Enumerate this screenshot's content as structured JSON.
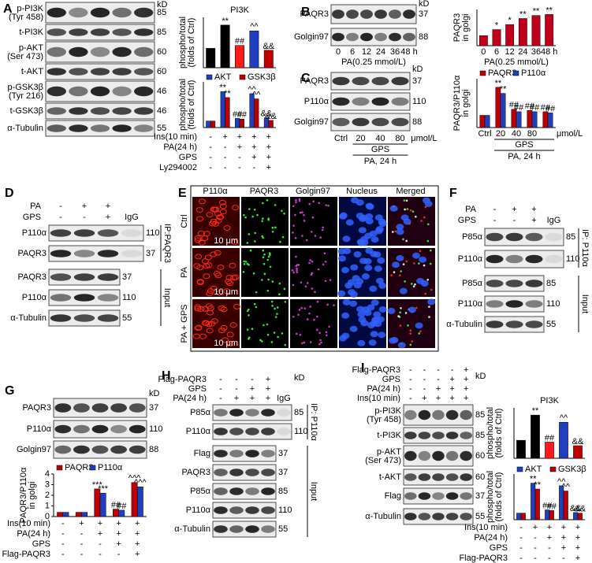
{
  "A": {
    "letter": "A",
    "blot": {
      "unit": "kD",
      "groups": [
        {
          "rows": [
            {
              "label": "p-PI3K",
              "sub": "(Tyr 458)",
              "kd": 85
            },
            {
              "label": "t-PI3K",
              "kd": 85
            },
            {
              "label": "p-AKT",
              "sub": "(Ser 473)",
              "kd": 60
            },
            {
              "label": "t-AKT",
              "kd": 60
            },
            {
              "label": "p-GSK3β",
              "sub": "(Tyr 216)",
              "kd": 46
            },
            {
              "label": "t-GSK3β",
              "kd": 46
            },
            {
              "label": "α-Tubulin",
              "kd": 55
            }
          ]
        }
      ]
    },
    "charts": [
      {
        "title": "PI3K",
        "ylabel": [
          "phospho/total",
          "(folds of Ctrl)"
        ],
        "ylim": [
          0,
          2.6
        ],
        "series": [
          {
            "colors": [
              "#000000",
              "#000000",
              "#ff1a1a",
              "#1f3fbf",
              "#c00000"
            ],
            "values": [
              1.0,
              2.2,
              1.15,
              1.9,
              0.9
            ],
            "annot": [
              null,
              "**",
              "##",
              "^^",
              "&&"
            ]
          }
        ]
      },
      {
        "ylabel": [
          "phospho/total",
          "(folds of Ctrl)"
        ],
        "ylim": [
          0,
          7
        ],
        "legend": true,
        "series": [
          {
            "name": "AKT",
            "color": "#1f3fbf",
            "values": [
              1.0,
              5.5,
              1.4,
              5.2,
              1.5
            ],
            "annot": [
              null,
              "**",
              "##",
              "^^",
              "&&"
            ]
          },
          {
            "name": "GSK3β",
            "color": "#c00000",
            "values": [
              1.0,
              4.6,
              1.3,
              4.4,
              1.1
            ],
            "annot": [
              null,
              "**",
              "##",
              "^^",
              "&&"
            ]
          }
        ]
      }
    ],
    "treatment": {
      "rows": [
        {
          "label": "Ins(10 min)",
          "signs": [
            "-",
            "+",
            "+",
            "+",
            "+"
          ]
        },
        {
          "label": "PA(24 h)",
          "signs": [
            "-",
            "-",
            "+",
            "+",
            "+"
          ]
        },
        {
          "label": "GPS",
          "signs": [
            "-",
            "-",
            "-",
            "+",
            "+"
          ]
        },
        {
          "label": "Ly294002",
          "signs": [
            "-",
            "-",
            "-",
            "-",
            "+"
          ]
        }
      ]
    }
  },
  "B": {
    "letter": "B",
    "blot": {
      "unit": "kD",
      "groups": [
        {
          "rows": [
            {
              "label": "PAQR3",
              "kd": 37
            },
            {
              "label": "Golgin97",
              "kd": 88
            }
          ]
        }
      ]
    },
    "blot_axis": {
      "lanes": [
        "0",
        "6",
        "12",
        "24",
        "36",
        "48 h"
      ],
      "xlabel": "PA(0.25 mmol/L)"
    },
    "chart": {
      "ylabel": [
        "PAQR3",
        "in golgi"
      ],
      "ylim": [
        0,
        3.6
      ],
      "series": [
        {
          "color": "#c0001a",
          "values": [
            1.0,
            1.6,
            2.1,
            2.7,
            3.0,
            3.1
          ],
          "annot": [
            null,
            "*",
            "*",
            "**",
            "**",
            "**"
          ]
        }
      ]
    },
    "chart_axis": {
      "lanes": [
        "0",
        "6",
        "12",
        "24",
        "36",
        "48 h"
      ],
      "xlabel": "PA(0.25 mmol/L)"
    }
  },
  "C": {
    "letter": "C",
    "blot": {
      "unit": "kD",
      "groups": [
        {
          "rows": [
            {
              "label": "PAQR3",
              "kd": 37
            },
            {
              "label": "P110α",
              "kd": 110
            },
            {
              "label": "Golgin97",
              "kd": 88
            }
          ]
        }
      ]
    },
    "blot_axis": {
      "lanes": [
        "Ctrl",
        "20",
        "40",
        "80"
      ],
      "unit": "μmol/L",
      "gps": "GPS",
      "pa": "PA, 24 h"
    },
    "chart": {
      "ylabel": [
        "PAQR3/P110α",
        "in golgi"
      ],
      "ylim": [
        0,
        4
      ],
      "legend": true,
      "series": [
        {
          "name": "PAQR3",
          "color": "#c00000",
          "values": [
            1.0,
            3.3,
            1.5,
            1.4,
            1.3
          ],
          "annot": [
            null,
            "**",
            "##",
            "##",
            "##"
          ]
        },
        {
          "name": "P110α",
          "color": "#1f3fbf",
          "values": [
            1.0,
            2.8,
            1.3,
            1.3,
            1.2
          ],
          "annot": [
            null,
            "**",
            "##",
            "##",
            "##"
          ]
        }
      ]
    },
    "chart_axis": {
      "lanes": [
        "Ctrl",
        "20",
        "40",
        "80"
      ],
      "unit": "μmol/L",
      "gps": "GPS",
      "pa": "PA, 24 h"
    }
  },
  "D": {
    "letter": "D",
    "treatment": {
      "rows": [
        {
          "label": "PA",
          "signs": [
            "-",
            "+",
            "+"
          ]
        },
        {
          "label": "GPS",
          "signs": [
            "-",
            "-",
            "+"
          ]
        }
      ]
    },
    "igg": "IgG",
    "blot": {
      "groups": [
        {
          "side": "IP:PAQR3",
          "rows": [
            {
              "label": "P110α",
              "kd": 110
            },
            {
              "label": "PAQR3",
              "kd": 37
            }
          ]
        },
        {
          "side": "Input",
          "rows": [
            {
              "label": "PAQR3",
              "kd": 37
            },
            {
              "label": "P110α",
              "kd": 110
            },
            {
              "label": "α-Tubulin",
              "kd": 55
            }
          ]
        }
      ]
    }
  },
  "E": {
    "letter": "E",
    "columns": [
      "P110α",
      "PAQR3",
      "Golgin97",
      "Nucleus",
      "Merged"
    ],
    "rows": [
      "Ctrl",
      "PA",
      "PA + GPS"
    ],
    "scale": "10 μm"
  },
  "F": {
    "letter": "F",
    "treatment": {
      "rows": [
        {
          "label": "PA",
          "signs": [
            "-",
            "+",
            "+"
          ]
        },
        {
          "label": "GPS",
          "signs": [
            "-",
            "-",
            "+"
          ]
        }
      ]
    },
    "igg": "IgG",
    "blot": {
      "groups": [
        {
          "side": "IP: P110α",
          "rows": [
            {
              "label": "P85α",
              "kd": 85
            },
            {
              "label": "P110α",
              "kd": 110
            }
          ]
        },
        {
          "side": "Input",
          "rows": [
            {
              "label": "P85α",
              "kd": 85
            },
            {
              "label": "P110α",
              "kd": 110
            },
            {
              "label": "α-Tubulin",
              "kd": 55
            }
          ]
        }
      ]
    }
  },
  "G": {
    "letter": "G",
    "blot": {
      "unit": "kD",
      "groups": [
        {
          "rows": [
            {
              "label": "PAQR3",
              "kd": 37
            },
            {
              "label": "P110α",
              "kd": 110
            },
            {
              "label": "Golgin97",
              "kd": 88
            }
          ]
        }
      ]
    },
    "chart": {
      "ylabel": [
        "PAQR3/P110α",
        "in golgi"
      ],
      "ylim": [
        0,
        4
      ],
      "yticks": [
        0,
        1,
        2,
        3,
        4
      ],
      "legend": true,
      "series": [
        {
          "name": "PAQR3",
          "color": "#c00000",
          "values": [
            0.4,
            0.4,
            2.6,
            0.7,
            3.2
          ],
          "annot": [
            null,
            null,
            "***",
            "##",
            "^^^"
          ]
        },
        {
          "name": "P110α",
          "color": "#1f3fbf",
          "values": [
            0.4,
            0.4,
            2.2,
            0.6,
            2.8
          ],
          "annot": [
            null,
            null,
            "***",
            "##",
            "^^^"
          ]
        }
      ]
    },
    "treatment": {
      "rows": [
        {
          "label": "Ins(10 min)",
          "signs": [
            "-",
            "+",
            "+",
            "+",
            "+"
          ]
        },
        {
          "label": "PA(24 h)",
          "signs": [
            "-",
            "-",
            "+",
            "+",
            "+"
          ]
        },
        {
          "label": "GPS",
          "signs": [
            "-",
            "-",
            "-",
            "+",
            "+"
          ]
        },
        {
          "label": "Flag-PAQR3",
          "signs": [
            "-",
            "-",
            "-",
            "-",
            "+"
          ]
        }
      ]
    }
  },
  "H": {
    "letter": "H",
    "treatment": {
      "rows": [
        {
          "label": "Flag-PAQR3",
          "signs": [
            "-",
            "-",
            "-",
            "+"
          ]
        },
        {
          "label": "GPS",
          "signs": [
            "-",
            "-",
            "+",
            "+"
          ]
        },
        {
          "label": "PA(24 h)",
          "signs": [
            "-",
            "+",
            "+",
            "+"
          ]
        }
      ]
    },
    "igg": "IgG",
    "blot": {
      "unit": "kD",
      "groups": [
        {
          "side": "IP: P110α",
          "rows": [
            {
              "label": "P85α",
              "kd": 85
            },
            {
              "label": "P110α",
              "kd": 110
            }
          ]
        },
        {
          "side": "Input",
          "rows": [
            {
              "label": "Flag",
              "kd": 37
            },
            {
              "label": "PAQR3",
              "kd": 37
            },
            {
              "label": "P85α",
              "kd": 85
            },
            {
              "label": "P110α",
              "kd": 110
            },
            {
              "label": "α-Tubulin",
              "kd": 55
            }
          ]
        }
      ]
    }
  },
  "I": {
    "letter": "I",
    "top_treatment": {
      "rows": [
        {
          "label": "Flag-PAQR3",
          "signs": [
            "-",
            "-",
            "-",
            "-",
            "+"
          ]
        },
        {
          "label": "GPS",
          "signs": [
            "-",
            "-",
            "-",
            "+",
            "+"
          ]
        },
        {
          "label": "PA(24 h)",
          "signs": [
            "-",
            "-",
            "+",
            "+",
            "+"
          ]
        },
        {
          "label": "Ins(10 min)",
          "signs": [
            "-",
            "+",
            "+",
            "+",
            "+"
          ]
        }
      ]
    },
    "blot": {
      "unit": "kD",
      "groups": [
        {
          "rows": [
            {
              "label": "p-PI3K",
              "sub": "(Tyr 458)",
              "kd": 85
            },
            {
              "label": "t-PI3K",
              "kd": 85
            },
            {
              "label": "p-AKT",
              "sub": "(Ser 473)",
              "kd": 60
            },
            {
              "label": "t-AKT",
              "kd": 60
            },
            {
              "label": "Flag",
              "kd": 37
            },
            {
              "label": "α-Tubulin",
              "kd": 55
            }
          ]
        }
      ]
    },
    "charts": [
      {
        "title": "PI3K",
        "ylabel": [
          "phospho/total",
          "(folds of Ctrl)"
        ],
        "ylim": [
          0,
          2.8
        ],
        "series": [
          {
            "colors": [
              "#000000",
              "#000000",
              "#ff1a1a",
              "#1f3fbf",
              "#c00000"
            ],
            "values": [
              1.0,
              2.4,
              0.9,
              2.0,
              0.7
            ],
            "annot": [
              null,
              "**",
              "##",
              "^^",
              "&&"
            ]
          }
        ]
      },
      {
        "ylabel": [
          "phospho/total",
          "(folds of Ctrl)"
        ],
        "ylim": [
          0,
          7
        ],
        "legend": true,
        "series": [
          {
            "name": "AKT",
            "color": "#1f3fbf",
            "values": [
              1.0,
              5.6,
              1.5,
              5.2,
              1.1
            ],
            "annot": [
              null,
              "**",
              "##",
              "^^",
              "&&"
            ]
          },
          {
            "name": "GSK3β",
            "color": "#c00000",
            "values": [
              1.0,
              4.7,
              1.4,
              4.4,
              1.0
            ],
            "annot": [
              null,
              "**",
              "##",
              "^^",
              "&&"
            ]
          }
        ]
      }
    ],
    "treatment": {
      "rows": [
        {
          "label": "Ins(10 min)",
          "signs": [
            "-",
            "+",
            "+",
            "+",
            "+"
          ]
        },
        {
          "label": "PA(24 h)",
          "signs": [
            "-",
            "-",
            "+",
            "+",
            "+"
          ]
        },
        {
          "label": "GPS",
          "signs": [
            "-",
            "-",
            "-",
            "+",
            "+"
          ]
        },
        {
          "label": "Flag-PAQR3",
          "signs": [
            "-",
            "-",
            "-",
            "-",
            "+"
          ]
        }
      ]
    }
  }
}
